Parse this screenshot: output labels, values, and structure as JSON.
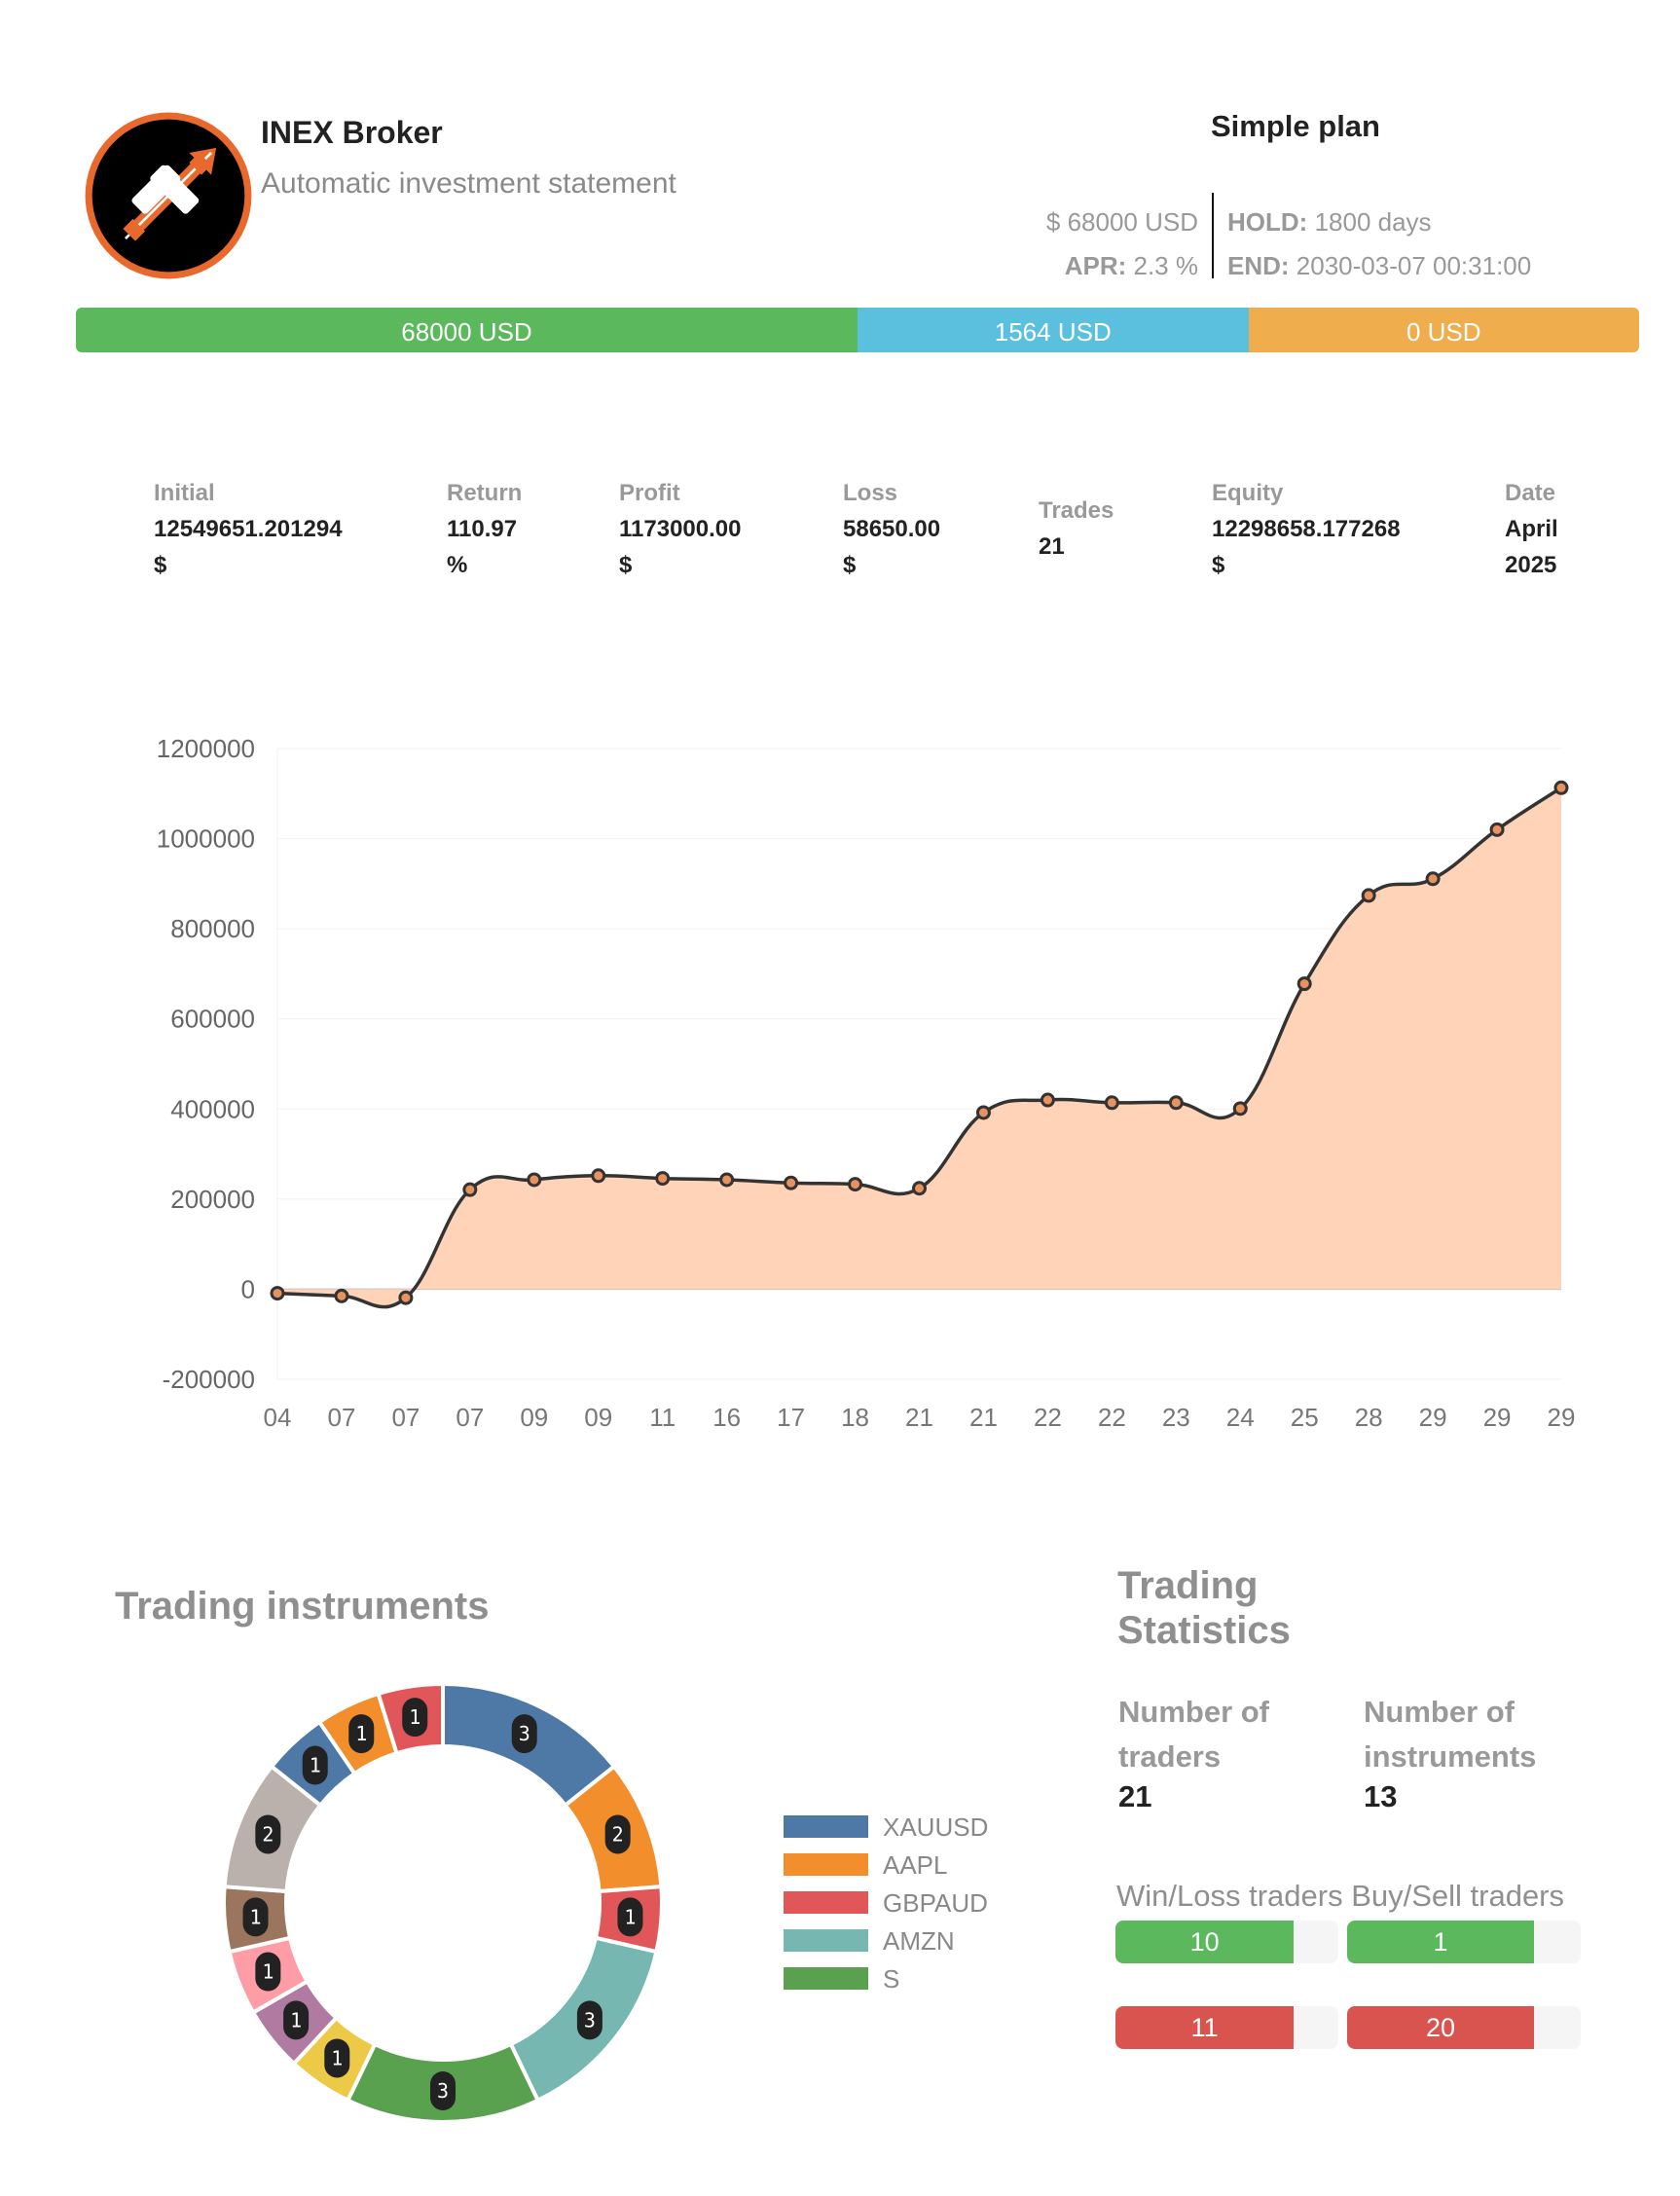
{
  "header": {
    "brand_name": "INEX Broker",
    "brand_subtitle": "Automatic investment statement",
    "logo_icon": "candlestick-arrows-logo",
    "logo_colors": {
      "ring": "#e9692c",
      "bg": "#000000",
      "fg": "#ffffff"
    }
  },
  "plan": {
    "title": "Simple plan",
    "amount": "$ 68000 USD",
    "apr_label": "APR:",
    "apr_value": "2.3 %",
    "hold_label": "HOLD:",
    "hold_value": "1800 days",
    "end_label": "END:",
    "end_value": "2030-03-07 00:31:00"
  },
  "progress": [
    {
      "label": "68000 USD",
      "percent": 50,
      "color": "#5cb85c"
    },
    {
      "label": "1564 USD",
      "percent": 25,
      "color": "#5bc0de"
    },
    {
      "label": "0 USD",
      "percent": 25,
      "color": "#f0ad4e"
    }
  ],
  "stats": [
    {
      "label": "Initial",
      "value": "12549651.201294",
      "unit": "$"
    },
    {
      "label": "Return",
      "value": "110.97",
      "unit": "%"
    },
    {
      "label": "Profit",
      "value": "1173000.00",
      "unit": "$"
    },
    {
      "label": "Loss",
      "value": "58650.00",
      "unit": "$"
    },
    {
      "label": "Trades",
      "value": "21",
      "unit": ""
    },
    {
      "label": "Equity",
      "value": "12298658.177268",
      "unit": "$"
    },
    {
      "label": "Date",
      "value": "April",
      "unit": "2025"
    }
  ],
  "chart_data": [
    {
      "type": "area",
      "categories": [
        "04",
        "07",
        "07",
        "07",
        "09",
        "09",
        "11",
        "16",
        "17",
        "18",
        "21",
        "21",
        "22",
        "22",
        "23",
        "24",
        "25",
        "28",
        "29",
        "29",
        "29"
      ],
      "values": [
        -9000,
        -15000,
        -19000,
        221000,
        243000,
        252000,
        246000,
        243000,
        236000,
        233000,
        224000,
        392000,
        420000,
        414000,
        414000,
        401000,
        678000,
        874000,
        911000,
        1020000,
        1113000
      ],
      "ylim": [
        -200000,
        1200000
      ],
      "yticks": [
        "1200000",
        "1000000",
        "800000",
        "600000",
        "400000",
        "200000",
        "0",
        "-200000"
      ],
      "ytick_values": [
        1200000,
        1000000,
        800000,
        600000,
        400000,
        200000,
        0,
        -200000
      ],
      "grid": true,
      "line_color": "#333333",
      "fill_color": "#ffd3b8",
      "point_color": "#e8925e"
    },
    {
      "type": "pie",
      "title": "Trading instruments",
      "donut": true,
      "slices": [
        {
          "name": "XAUUSD",
          "value": 3,
          "color": "#4e79a7"
        },
        {
          "name": "AAPL",
          "value": 2,
          "color": "#f28e2b"
        },
        {
          "name": "GBPAUD",
          "value": 1,
          "color": "#e15759"
        },
        {
          "name": "AMZN",
          "value": 3,
          "color": "#76b7b2"
        },
        {
          "name": "S",
          "value": 3,
          "color": "#59a14f"
        },
        {
          "value": 1,
          "color": "#edc948"
        },
        {
          "value": 1,
          "color": "#b07aa1"
        },
        {
          "value": 1,
          "color": "#ff9da7"
        },
        {
          "value": 1,
          "color": "#9c755f"
        },
        {
          "value": 2,
          "color": "#bab0ac"
        },
        {
          "value": 1,
          "color": "#4e79a7"
        },
        {
          "value": 1,
          "color": "#f28e2b"
        },
        {
          "value": 1,
          "color": "#e15759"
        }
      ],
      "legend": [
        "XAUUSD",
        "AAPL",
        "GBPAUD",
        "AMZN",
        "S"
      ],
      "legend_placement": "right"
    }
  ],
  "trading_stats": {
    "title_line1": "Trading",
    "title_line2": "Statistics",
    "traders_label1": "Number of",
    "traders_label2": "traders",
    "traders_value": "21",
    "instruments_label1": "Number of",
    "instruments_label2": "instruments",
    "instruments_value": "13",
    "bars_heading": "Win/Loss traders Buy/Sell traders",
    "bars": [
      {
        "label": "10",
        "percent": 80,
        "color": "#5cb85c"
      },
      {
        "label": "1",
        "percent": 80,
        "color": "#5cb85c"
      },
      {
        "label": "11",
        "percent": 80,
        "color": "#d9534f"
      },
      {
        "label": "20",
        "percent": 80,
        "color": "#d9534f"
      }
    ]
  }
}
